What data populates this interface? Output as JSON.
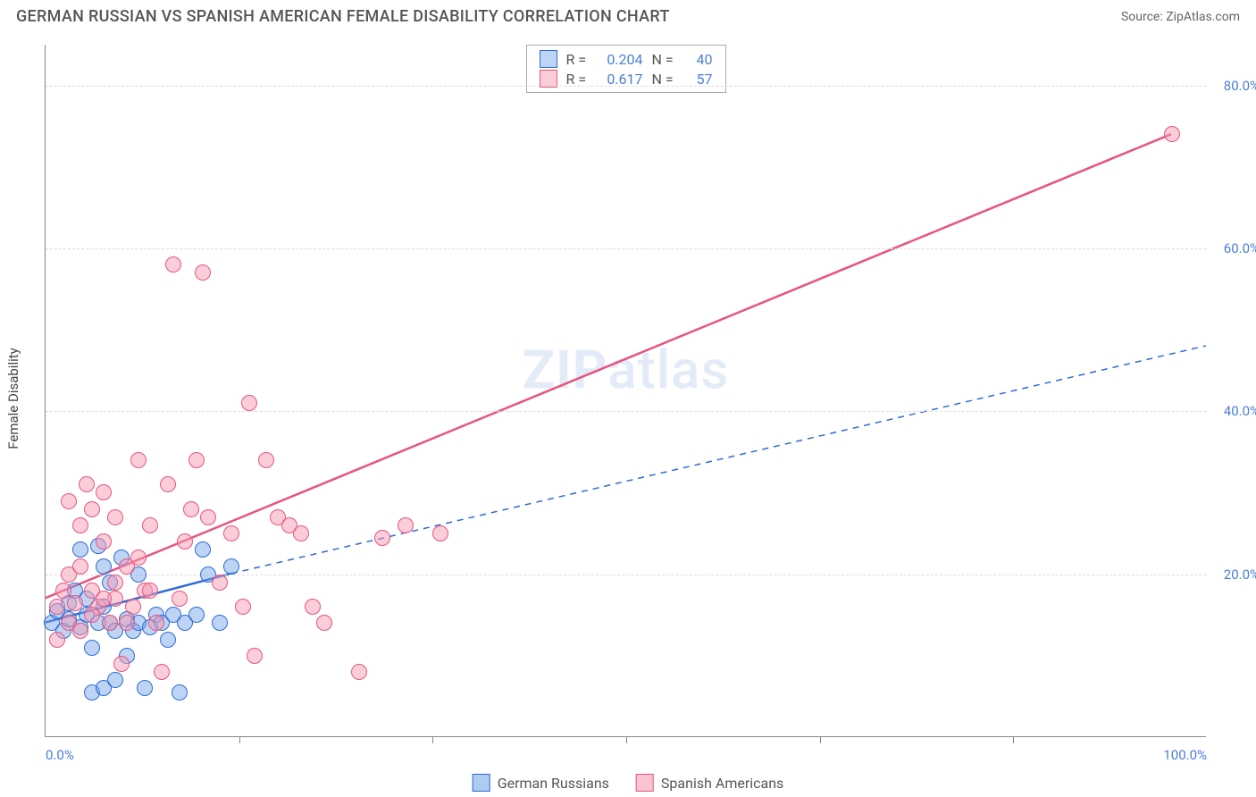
{
  "header": {
    "title": "GERMAN RUSSIAN VS SPANISH AMERICAN FEMALE DISABILITY CORRELATION CHART",
    "source": "Source: ZipAtlas.com"
  },
  "watermark": {
    "bold": "ZIP",
    "light": "atlas"
  },
  "chart": {
    "type": "scatter",
    "background_color": "#ffffff",
    "grid_color": "#dddddd",
    "axis_color": "#888888",
    "tick_label_color": "#4a7fd6",
    "axis_label_color": "#444444",
    "ylabel": "Female Disability",
    "label_fontsize": 15,
    "xlim": [
      0,
      100
    ],
    "ylim": [
      0,
      85
    ],
    "y_ticks": [
      20,
      40,
      60,
      80
    ],
    "y_tick_labels": [
      "20.0%",
      "40.0%",
      "60.0%",
      "80.0%"
    ],
    "x_ticks": [
      0,
      50,
      100
    ],
    "x_tick_labels": [
      "0.0%",
      "",
      "100.0%"
    ],
    "x_minor_ticks": [
      16.67,
      33.33,
      50,
      66.67,
      83.33
    ],
    "marker_radius": 9,
    "marker_border_width": 1.5,
    "marker_fill_opacity": 0.35,
    "series": [
      {
        "name": "German Russians",
        "color": "#2e6bd6",
        "fill_color": "rgba(110,160,230,0.45)",
        "border_color": "#2e6bd6",
        "r": "0.204",
        "n": "40",
        "trend": {
          "x1": 0,
          "y1": 14,
          "x2": 16,
          "y2": 20,
          "dashed": false,
          "width": 2.5
        },
        "trend_ext": {
          "x1": 16,
          "y1": 20,
          "x2": 100,
          "y2": 48,
          "dashed": true,
          "width": 1.5
        },
        "points": [
          [
            0.5,
            14
          ],
          [
            1,
            15.5
          ],
          [
            1.5,
            13
          ],
          [
            2,
            16.5
          ],
          [
            2,
            14.5
          ],
          [
            2.5,
            18
          ],
          [
            3,
            13.5
          ],
          [
            3,
            23
          ],
          [
            3.5,
            15
          ],
          [
            3.5,
            17
          ],
          [
            4,
            5.5
          ],
          [
            4,
            11
          ],
          [
            4.5,
            14
          ],
          [
            4.5,
            23.5
          ],
          [
            5,
            6
          ],
          [
            5,
            16
          ],
          [
            5.5,
            14
          ],
          [
            5.5,
            19
          ],
          [
            6,
            7
          ],
          [
            6,
            13
          ],
          [
            6.5,
            22
          ],
          [
            7,
            14.5
          ],
          [
            7.5,
            13
          ],
          [
            8,
            14
          ],
          [
            8,
            20
          ],
          [
            8.5,
            6
          ],
          [
            9,
            13.5
          ],
          [
            9.5,
            15
          ],
          [
            10,
            14
          ],
          [
            10.5,
            12
          ],
          [
            11,
            15
          ],
          [
            11.5,
            5.5
          ],
          [
            12,
            14
          ],
          [
            13,
            15
          ],
          [
            13.5,
            23
          ],
          [
            14,
            20
          ],
          [
            15,
            14
          ],
          [
            16,
            21
          ],
          [
            7,
            10
          ],
          [
            5,
            21
          ]
        ]
      },
      {
        "name": "Spanish Americans",
        "color": "#e75480",
        "fill_color": "rgba(245,155,180,0.5)",
        "border_color": "#e75480",
        "r": "0.617",
        "n": "57",
        "trend": {
          "x1": 0,
          "y1": 17,
          "x2": 97,
          "y2": 74,
          "dashed": false,
          "width": 2.5
        },
        "trend_ext": null,
        "points": [
          [
            1,
            16
          ],
          [
            1.5,
            18
          ],
          [
            2,
            14
          ],
          [
            2,
            29
          ],
          [
            2.5,
            16.5
          ],
          [
            3,
            26
          ],
          [
            3,
            13
          ],
          [
            3.5,
            31
          ],
          [
            4,
            18
          ],
          [
            4,
            28
          ],
          [
            4.5,
            16
          ],
          [
            5,
            24
          ],
          [
            5,
            30
          ],
          [
            5.5,
            14
          ],
          [
            6,
            27
          ],
          [
            6,
            17
          ],
          [
            6.5,
            9
          ],
          [
            7,
            21
          ],
          [
            7.5,
            16
          ],
          [
            8,
            34
          ],
          [
            8.5,
            18
          ],
          [
            9,
            26
          ],
          [
            9.5,
            14
          ],
          [
            10,
            8
          ],
          [
            10.5,
            31
          ],
          [
            11,
            58
          ],
          [
            11.5,
            17
          ],
          [
            12,
            24
          ],
          [
            12.5,
            28
          ],
          [
            13,
            34
          ],
          [
            13.5,
            57
          ],
          [
            14,
            27
          ],
          [
            15,
            19
          ],
          [
            16,
            25
          ],
          [
            17,
            16
          ],
          [
            17.5,
            41
          ],
          [
            18,
            10
          ],
          [
            19,
            34
          ],
          [
            20,
            27
          ],
          [
            21,
            26
          ],
          [
            22,
            25
          ],
          [
            23,
            16
          ],
          [
            24,
            14
          ],
          [
            27,
            8
          ],
          [
            29,
            24.5
          ],
          [
            31,
            26
          ],
          [
            34,
            25
          ],
          [
            97,
            74
          ],
          [
            1,
            12
          ],
          [
            2,
            20
          ],
          [
            3,
            21
          ],
          [
            4,
            15
          ],
          [
            5,
            17
          ],
          [
            6,
            19
          ],
          [
            7,
            14
          ],
          [
            8,
            22
          ],
          [
            9,
            18
          ]
        ]
      }
    ],
    "stats_legend": {
      "equals": "=",
      "r_label": "R",
      "n_label": "N"
    },
    "bottom_legend": [
      {
        "label": "German Russians",
        "fill": "rgba(110,160,230,0.55)",
        "border": "#2e6bd6"
      },
      {
        "label": "Spanish Americans",
        "fill": "rgba(245,155,180,0.6)",
        "border": "#e75480"
      }
    ]
  }
}
